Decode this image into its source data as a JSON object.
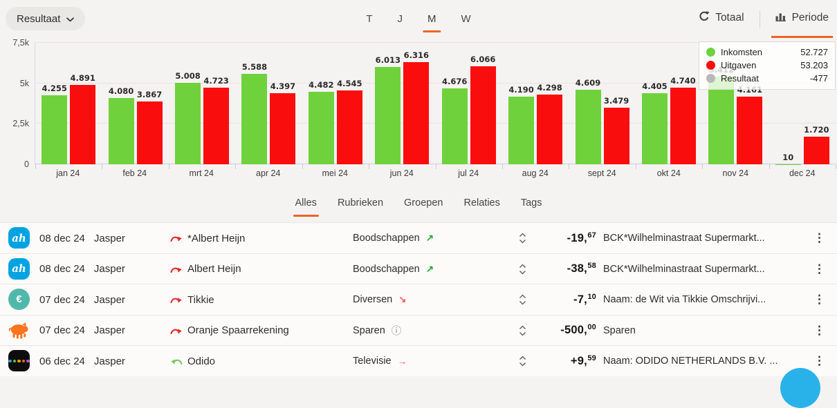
{
  "colors": {
    "accent": "#ee6325",
    "income": "#6fd23c",
    "expense": "#fa0d0d",
    "neutral": "#b9b9b9",
    "fab": "#29b2e9"
  },
  "header": {
    "metric_dropdown": {
      "label": "Resultaat"
    },
    "period_tabs": [
      {
        "label": "T",
        "active": false
      },
      {
        "label": "J",
        "active": false
      },
      {
        "label": "M",
        "active": true
      },
      {
        "label": "W",
        "active": false
      }
    ],
    "view_toggle": [
      {
        "label": "Totaal",
        "icon": "refresh-icon",
        "active": false
      },
      {
        "label": "Periode",
        "icon": "bar-chart-icon",
        "active": true
      }
    ]
  },
  "chart_data": {
    "type": "bar",
    "categories": [
      "jan 24",
      "feb 24",
      "mrt 24",
      "apr 24",
      "mei 24",
      "jun 24",
      "jul 24",
      "aug 24",
      "sept 24",
      "okt 24",
      "nov 24",
      "dec 24"
    ],
    "series": [
      {
        "name": "Inkomsten",
        "color": "#6fd23c",
        "values": [
          4255,
          4080,
          5008,
          5588,
          4482,
          6013,
          4676,
          4190,
          4609,
          4405,
          5412,
          10
        ],
        "labels": [
          "4.255",
          "4.080",
          "5.008",
          "5.588",
          "4.482",
          "6.013",
          "4.676",
          "4.190",
          "4.609",
          "4.405",
          "5.412",
          "10"
        ]
      },
      {
        "name": "Uitgaven",
        "color": "#fa0d0d",
        "values": [
          4891,
          3867,
          4723,
          4397,
          4545,
          6316,
          6066,
          4298,
          3479,
          4740,
          4161,
          1720
        ],
        "labels": [
          "4.891",
          "3.867",
          "4.723",
          "4.397",
          "4.545",
          "6.316",
          "6.066",
          "4.298",
          "3.479",
          "4.740",
          "4.161",
          "1.720"
        ]
      }
    ],
    "ylim": [
      0,
      7500
    ],
    "yticks": [
      {
        "label": "0",
        "value": 0
      },
      {
        "label": "2,5k",
        "value": 2500
      },
      {
        "label": "5k",
        "value": 5000
      },
      {
        "label": "7,5k",
        "value": 7500
      }
    ],
    "grid": true,
    "legend": {
      "position": "top-right",
      "items": [
        {
          "label": "Inkomsten",
          "value": "52.727",
          "color": "#6fd23c"
        },
        {
          "label": "Uitgaven",
          "value": "53.203",
          "color": "#fa0d0d"
        },
        {
          "label": "Resultaat",
          "value": "-477",
          "color": "#b9b9b9"
        }
      ]
    }
  },
  "list_tabs": [
    {
      "label": "Alles",
      "active": true
    },
    {
      "label": "Rubrieken",
      "active": false
    },
    {
      "label": "Groepen",
      "active": false
    },
    {
      "label": "Relaties",
      "active": false
    },
    {
      "label": "Tags",
      "active": false
    }
  ],
  "transactions": [
    {
      "logo": "albert-heijn",
      "date": "08 dec 24",
      "account": "Jasper",
      "direction": "out",
      "payee": "*Albert Heijn",
      "category": "Boodschappen",
      "trend": "up",
      "amount_units": "-19,",
      "amount_cents": "67",
      "description": "BCK*Wilhelminastraat Supermarkt..."
    },
    {
      "logo": "albert-heijn",
      "date": "08 dec 24",
      "account": "Jasper",
      "direction": "out",
      "payee": "Albert Heijn",
      "category": "Boodschappen",
      "trend": "up",
      "amount_units": "-38,",
      "amount_cents": "58",
      "description": "BCK*Wilhelminastraat Supermarkt..."
    },
    {
      "logo": "tikkie",
      "date": "07 dec 24",
      "account": "Jasper",
      "direction": "out",
      "payee": "Tikkie",
      "category": "Diversen",
      "trend": "down",
      "amount_units": "-7,",
      "amount_cents": "10",
      "description": "Naam: de Wit via Tikkie Omschrijvi..."
    },
    {
      "logo": "piggy-bank",
      "date": "07 dec 24",
      "account": "Jasper",
      "direction": "out",
      "payee": "Oranje Spaarrekening",
      "category": "Sparen",
      "trend": "info",
      "amount_units": "-500,",
      "amount_cents": "00",
      "description": "Sparen"
    },
    {
      "logo": "odido",
      "date": "06 dec 24",
      "account": "Jasper",
      "direction": "in",
      "payee": "Odido",
      "category": "Televisie",
      "trend": "right",
      "amount_units": "+9,",
      "amount_cents": "59",
      "description": "Naam: ODIDO NETHERLANDS B.V. ..."
    }
  ]
}
